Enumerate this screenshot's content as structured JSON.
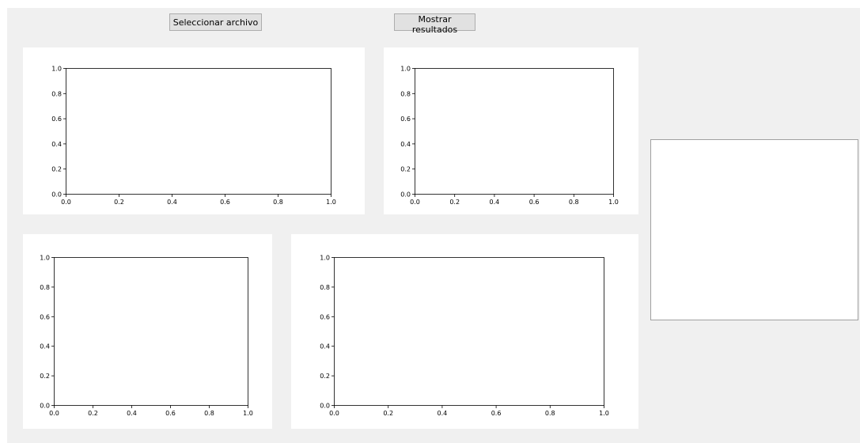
{
  "toolbar": {
    "select_file_label": "Seleccionar archivo",
    "show_results_label": "Mostrar resultados"
  },
  "chart_data": [
    {
      "type": "line",
      "series": [],
      "xlim": [
        0,
        1
      ],
      "ylim": [
        0,
        1
      ],
      "xticks": [
        "0.0",
        "0.2",
        "0.4",
        "0.6",
        "0.8",
        "1.0"
      ],
      "yticks": [
        "0.0",
        "0.2",
        "0.4",
        "0.6",
        "0.8",
        "1.0"
      ],
      "grid": false
    },
    {
      "type": "line",
      "series": [],
      "xlim": [
        0,
        1
      ],
      "ylim": [
        0,
        1
      ],
      "xticks": [
        "0.0",
        "0.2",
        "0.4",
        "0.6",
        "0.8",
        "1.0"
      ],
      "yticks": [
        "0.0",
        "0.2",
        "0.4",
        "0.6",
        "0.8",
        "1.0"
      ],
      "grid": false
    },
    {
      "type": "line",
      "series": [],
      "xlim": [
        0,
        1
      ],
      "ylim": [
        0,
        1
      ],
      "xticks": [
        "0.0",
        "0.2",
        "0.4",
        "0.6",
        "0.8",
        "1.0"
      ],
      "yticks": [
        "0.0",
        "0.2",
        "0.4",
        "0.6",
        "0.8",
        "1.0"
      ],
      "grid": false
    },
    {
      "type": "line",
      "series": [],
      "xlim": [
        0,
        1
      ],
      "ylim": [
        0,
        1
      ],
      "xticks": [
        "0.0",
        "0.2",
        "0.4",
        "0.6",
        "0.8",
        "1.0"
      ],
      "yticks": [
        "0.0",
        "0.2",
        "0.4",
        "0.6",
        "0.8",
        "1.0"
      ],
      "grid": false
    }
  ]
}
